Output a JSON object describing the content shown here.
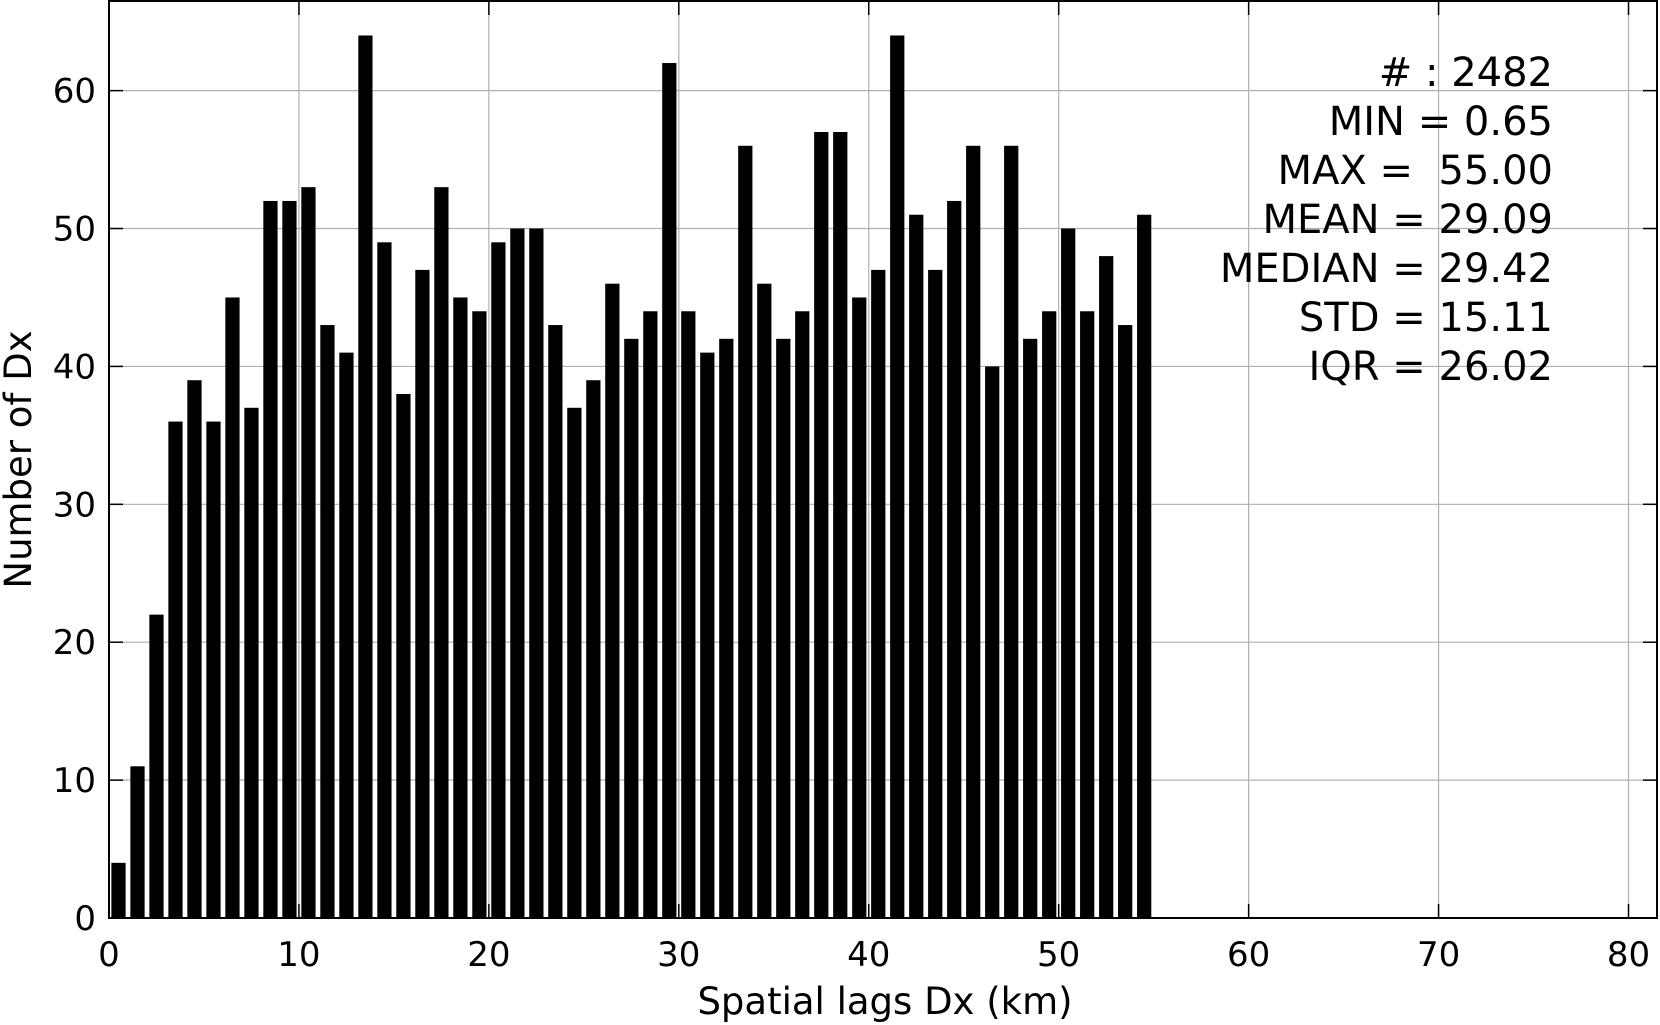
{
  "chart_data": {
    "type": "bar",
    "title": "",
    "xlabel": "Spatial lags Dx (km)",
    "ylabel": "Number of Dx",
    "xlim": [
      0,
      81.5
    ],
    "ylim": [
      0,
      66.5
    ],
    "xticks": [
      0,
      10,
      20,
      30,
      40,
      50,
      60,
      70,
      80
    ],
    "yticks": [
      0,
      10,
      20,
      30,
      40,
      50,
      60
    ],
    "xtick_labels": [
      "0",
      "10",
      "20",
      "30",
      "40",
      "50",
      "60",
      "70",
      "80"
    ],
    "ytick_labels": [
      "0",
      "10",
      "20",
      "30",
      "40",
      "50",
      "60"
    ],
    "grid": true,
    "bar_color": "#000000",
    "bin_width": 1,
    "bar_width_fraction": 0.75,
    "x": [
      0.5,
      1.5,
      2.5,
      3.5,
      4.5,
      5.5,
      6.5,
      7.5,
      8.5,
      9.5,
      10.5,
      11.5,
      12.5,
      13.5,
      14.5,
      15.5,
      16.5,
      17.5,
      18.5,
      19.5,
      20.5,
      21.5,
      22.5,
      23.5,
      24.5,
      25.5,
      26.5,
      27.5,
      28.5,
      29.5,
      30.5,
      31.5,
      32.5,
      33.5,
      34.5,
      35.5,
      36.5,
      37.5,
      38.5,
      39.5,
      40.5,
      41.5,
      42.5,
      43.5,
      44.5,
      45.5,
      46.5,
      47.5,
      48.5,
      49.5,
      50.5,
      51.5,
      52.5,
      53.5,
      54.5
    ],
    "values": [
      4,
      11,
      22,
      36,
      39,
      36,
      45,
      37,
      52,
      52,
      53,
      43,
      41,
      64,
      49,
      38,
      47,
      53,
      45,
      44,
      49,
      50,
      50,
      43,
      37,
      39,
      46,
      42,
      44,
      62,
      44,
      41,
      42,
      56,
      46,
      42,
      44,
      57,
      57,
      45,
      47,
      64,
      51,
      47,
      52,
      56,
      40,
      56,
      42,
      44,
      50,
      44,
      48,
      43,
      51
    ],
    "stats": [
      "# : 2482",
      "MIN = 0.65",
      "MAX =  55.00",
      "MEAN = 29.09",
      "MEDIAN = 29.42",
      "STD = 15.11",
      "IQR = 26.02"
    ]
  }
}
